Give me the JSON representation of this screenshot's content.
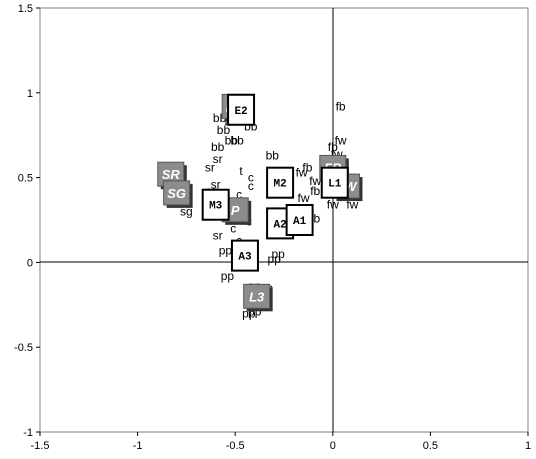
{
  "chart_data": {
    "type": "scatter",
    "title": "",
    "xlabel": "",
    "ylabel": "",
    "xlim": [
      -1.5,
      1
    ],
    "ylim": [
      -1,
      1.5
    ],
    "x_ticks": [
      "-1.5",
      "-1",
      "-0.5",
      "0",
      "0.5",
      "1"
    ],
    "y_ticks": [
      "-1",
      "-0.5",
      "0",
      "0.5",
      "1",
      "1.5"
    ],
    "grid": false,
    "axes_through_origin": true,
    "point_labels": [
      {
        "label": "fb",
        "x": 0.04,
        "y": 0.92
      },
      {
        "label": "bb",
        "x": -0.58,
        "y": 0.85
      },
      {
        "label": "bb",
        "x": -0.52,
        "y": 0.83
      },
      {
        "label": "bb",
        "x": -0.42,
        "y": 0.8
      },
      {
        "label": "bb",
        "x": -0.56,
        "y": 0.78
      },
      {
        "label": "bb",
        "x": -0.49,
        "y": 0.72
      },
      {
        "label": "bb",
        "x": -0.52,
        "y": 0.72
      },
      {
        "label": "bb",
        "x": -0.59,
        "y": 0.68
      },
      {
        "label": "bb",
        "x": -0.31,
        "y": 0.63
      },
      {
        "label": "sr",
        "x": -0.59,
        "y": 0.61
      },
      {
        "label": "sr",
        "x": -0.63,
        "y": 0.56
      },
      {
        "label": "t",
        "x": -0.47,
        "y": 0.54
      },
      {
        "label": "fw",
        "x": 0.04,
        "y": 0.72
      },
      {
        "label": "fb",
        "x": 0.0,
        "y": 0.68
      },
      {
        "label": "fw",
        "x": 0.02,
        "y": 0.64
      },
      {
        "label": "fb",
        "x": -0.13,
        "y": 0.56
      },
      {
        "label": "fw",
        "x": -0.16,
        "y": 0.53
      },
      {
        "label": "fw",
        "x": -0.09,
        "y": 0.48
      },
      {
        "label": "fb",
        "x": -0.09,
        "y": 0.42
      },
      {
        "label": "fw",
        "x": -0.15,
        "y": 0.38
      },
      {
        "label": "fw",
        "x": 0.0,
        "y": 0.34
      },
      {
        "label": "fw",
        "x": 0.1,
        "y": 0.34
      },
      {
        "label": "fb",
        "x": -0.09,
        "y": 0.26
      },
      {
        "label": "c",
        "x": -0.42,
        "y": 0.5
      },
      {
        "label": "c",
        "x": -0.42,
        "y": 0.45
      },
      {
        "label": "c",
        "x": -0.48,
        "y": 0.4
      },
      {
        "label": "sr",
        "x": -0.6,
        "y": 0.46
      },
      {
        "label": "sg",
        "x": -0.62,
        "y": 0.42
      },
      {
        "label": "sg",
        "x": -0.78,
        "y": 0.37
      },
      {
        "label": "sg",
        "x": -0.75,
        "y": 0.3
      },
      {
        "label": "tt",
        "x": -0.65,
        "y": 0.3
      },
      {
        "label": "c",
        "x": -0.43,
        "y": 0.24
      },
      {
        "label": "c",
        "x": -0.51,
        "y": 0.2
      },
      {
        "label": "sr",
        "x": -0.59,
        "y": 0.16
      },
      {
        "label": "c",
        "x": -0.48,
        "y": 0.13
      },
      {
        "label": "pp",
        "x": -0.55,
        "y": 0.07
      },
      {
        "label": "pp",
        "x": -0.54,
        "y": -0.08
      },
      {
        "label": "pp",
        "x": -0.28,
        "y": 0.05
      },
      {
        "label": "pp",
        "x": -0.3,
        "y": 0.02
      },
      {
        "label": "pp",
        "x": -0.4,
        "y": -0.14
      },
      {
        "label": "pp",
        "x": -0.34,
        "y": -0.15
      },
      {
        "label": "pp",
        "x": -0.4,
        "y": -0.29
      },
      {
        "label": "pp",
        "x": -0.43,
        "y": -0.3
      }
    ],
    "gray_markers": [
      {
        "label": "BB",
        "x": -0.5,
        "y": 0.92
      },
      {
        "label": "SR",
        "x": -0.83,
        "y": 0.52
      },
      {
        "label": "SG",
        "x": -0.8,
        "y": 0.41
      },
      {
        "label": "FB",
        "x": 0.0,
        "y": 0.56
      },
      {
        "label": "FW",
        "x": 0.07,
        "y": 0.45
      },
      {
        "label": "P",
        "x": -0.5,
        "y": 0.31
      },
      {
        "label": "L3",
        "x": -0.39,
        "y": -0.2
      }
    ],
    "box_markers": [
      {
        "label": "M2",
        "x": -0.27,
        "y": 0.47
      },
      {
        "label": "M3",
        "x": -0.6,
        "y": 0.34
      },
      {
        "label": "A2",
        "x": -0.27,
        "y": 0.23
      },
      {
        "label": "A1",
        "x": -0.17,
        "y": 0.25
      },
      {
        "label": "A3",
        "x": -0.45,
        "y": 0.04
      },
      {
        "label": "E2",
        "x": -0.47,
        "y": 0.9
      },
      {
        "label": "L1",
        "x": 0.01,
        "y": 0.47
      }
    ]
  }
}
